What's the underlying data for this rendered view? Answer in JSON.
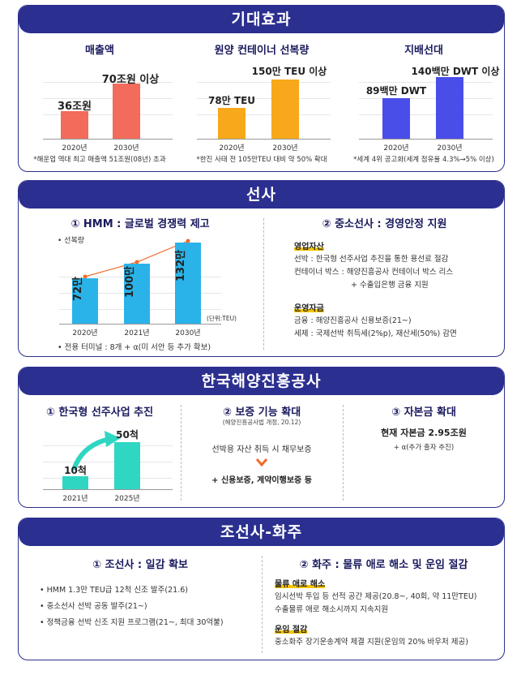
{
  "s1": {
    "title": "기대효과",
    "c1": {
      "title": "매출액",
      "v1": "36조원",
      "v2": "70조원 이상",
      "x1": "2020년",
      "x2": "2030년",
      "note": "*해운업 역대 최고 매출액 51조원(08년) 초과"
    },
    "c2": {
      "title": "원양 컨테이너 선복량",
      "v1": "78만 TEU",
      "v2": "150만 TEU 이상",
      "x1": "2020년",
      "x2": "2030년",
      "note": "*한진 사태 전 105만TEU 대비 약 50% 확대"
    },
    "c3": {
      "title": "지배선대",
      "v1": "89백만 DWT",
      "v2": "140백만 DWT 이상",
      "x1": "2020년",
      "x2": "2030년",
      "note": "*세계 4위 공고화(세계 점유율 4.3%→5% 이상)"
    }
  },
  "s2": {
    "title": "선사",
    "left_title": "① HMM : 글로벌 경쟁력 제고",
    "legend": "• 선복량",
    "bars": [
      "72만",
      "100만",
      "132만"
    ],
    "years": [
      "2020년",
      "2021년",
      "2030년"
    ],
    "unit": "(단위:TEU)",
    "terminal": "• 전용 터미널 : 8개 + α(미 서안 등 추가 확보)",
    "right_title": "② 중소선사 : 경영안정 지원",
    "sub1": "영업자산",
    "sub1_lines": [
      "선박 : 한국형 선주사업 추진을 통한 용선료 절감",
      "컨테이너 박스 : 해양진흥공사 컨테이너 박스 리스",
      "+ 수출입은행 금융 지원"
    ],
    "sub2": "운영자금",
    "sub2_lines": [
      "금융 : 해양진흥공사 신용보증(21~)",
      "세제 : 국제선박 취득세(2%p), 재산세(50%) 감면"
    ]
  },
  "s3": {
    "title": "한국해양진흥공사",
    "c1_title": "① 한국형 선주사업 추진",
    "v1": "10척",
    "v2": "50척",
    "x1": "2021년",
    "x2": "2025년",
    "c2_title": "② 보증 기능 확대",
    "c2_sub": "(해양진흥공사법 개정, 20.12)",
    "c2_line1": "선박용 자산 취득 시 채무보증",
    "c2_line2": "+ 신용보증, 계약이행보증 등",
    "c3_title": "③ 자본금 확대",
    "c3_line1": "현재 자본금 2.95조원",
    "c3_line2": "+ α(추가 출자 추진)"
  },
  "s4": {
    "title": "조선사-화주",
    "left_title": "① 조선사 : 일감 확보",
    "bullets": [
      "• HMM 1.3만 TEU급 12척 신조 발주(21.6)",
      "• 중소선사 선박 공동 발주(21~)",
      "• 정책금융 선박 신조 지원 프로그램(21~, 최대 30억불)"
    ],
    "right_title": "② 화주 : 물류 애로 해소 및 운임 절감",
    "sub1": "물류 애로 해소",
    "sub1_lines": [
      "임시선박 투입 등 선적 공간 제공(20.8~, 40회, 약 11만TEU)",
      "수출물류 애로 해소시까지 지속지원"
    ],
    "sub2": "운임 절감",
    "sub2_lines": [
      "중소화주 장기운송계약 체결 지원(운임의 20% 바우처 제공)"
    ]
  },
  "chart_data": [
    {
      "type": "bar",
      "title": "매출액",
      "categories": [
        "2020년",
        "2030년"
      ],
      "values": [
        36,
        70
      ],
      "ylabel": "조원"
    },
    {
      "type": "bar",
      "title": "원양 컨테이너 선복량",
      "categories": [
        "2020년",
        "2030년"
      ],
      "values": [
        78,
        150
      ],
      "ylabel": "만 TEU"
    },
    {
      "type": "bar",
      "title": "지배선대",
      "categories": [
        "2020년",
        "2030년"
      ],
      "values": [
        89,
        140
      ],
      "ylabel": "백만 DWT"
    },
    {
      "type": "bar",
      "title": "선복량",
      "categories": [
        "2020년",
        "2021년",
        "2030년"
      ],
      "values": [
        72,
        100,
        132
      ],
      "ylabel": "만 TEU"
    },
    {
      "type": "bar",
      "title": "한국형 선주사업 추진",
      "categories": [
        "2021년",
        "2025년"
      ],
      "values": [
        10,
        50
      ],
      "ylabel": "척"
    }
  ],
  "colors": {
    "navy": "#2b2f8f",
    "red": "#f26b5b",
    "orange": "#f7a81b",
    "blue": "#4a4ee8",
    "cyan": "#2ab3e8",
    "teal": "#2fd6c2",
    "arrow": "#f26b2a"
  }
}
